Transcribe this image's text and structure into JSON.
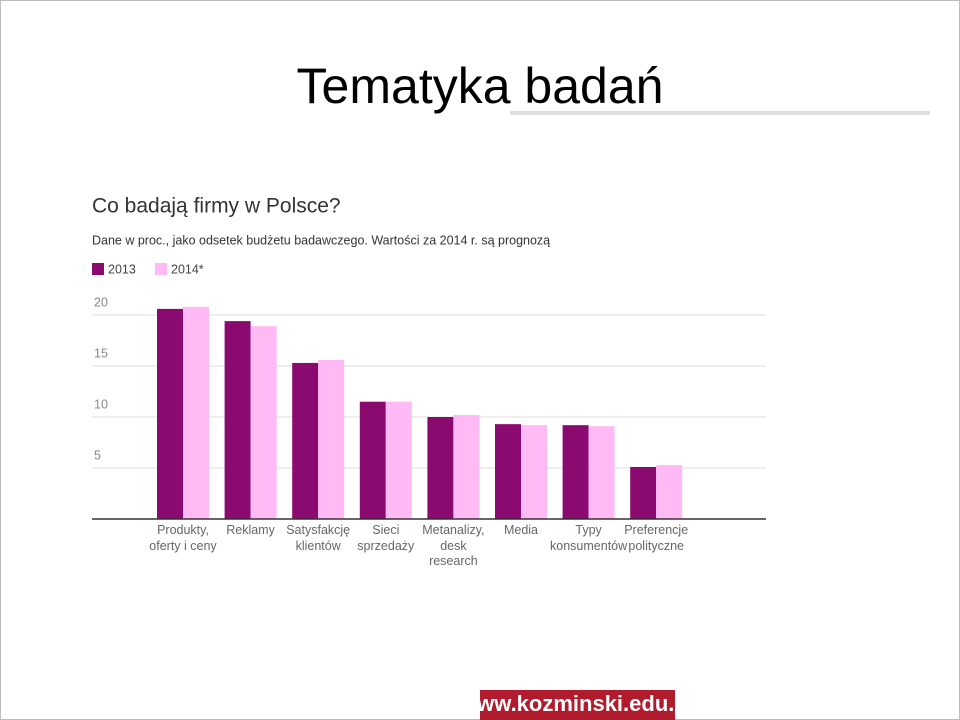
{
  "slide_title": "Tematyka badań",
  "footer": "www.kozminski.edu.pl",
  "chart_data": {
    "type": "bar",
    "title": "Co badają firmy w Polsce?",
    "subtitle": "Dane w proc., jako odsetek budżetu badawczego. Wartości za 2014 r. są prognozą",
    "categories": [
      "Produkty, oferty i ceny",
      "Reklamy",
      "Satysfakcję klientów",
      "Sieci sprzedaży",
      "Metanalizy, desk research",
      "Media",
      "Typy konsumentów",
      "Preferencje polityczne"
    ],
    "series": [
      {
        "name": "2013",
        "color": "#8b0a6f",
        "values": [
          20.6,
          19.4,
          15.3,
          11.5,
          10.0,
          9.3,
          9.2,
          5.1
        ]
      },
      {
        "name": "2014*",
        "color": "#ffbaf5",
        "values": [
          20.8,
          18.9,
          15.6,
          11.5,
          10.2,
          9.2,
          9.1,
          5.3
        ]
      }
    ],
    "ylim": [
      0,
      21.5
    ],
    "yticks": [
      5,
      10,
      15,
      20
    ],
    "grid": true
  }
}
